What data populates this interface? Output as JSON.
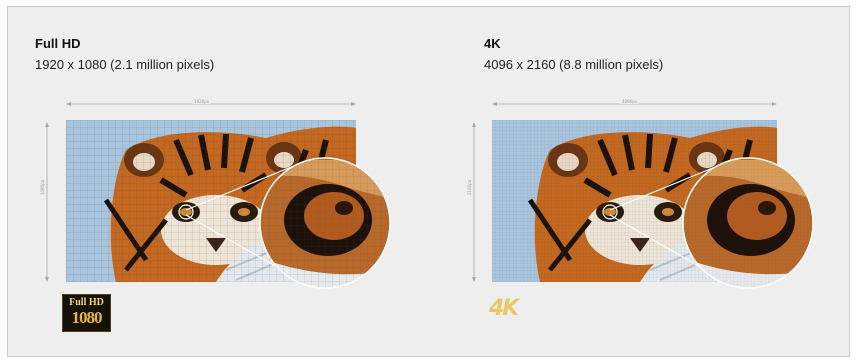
{
  "panels": [
    {
      "title": "Full HD",
      "subtitle": "1920 x 1080 (2.1 million pixels)",
      "width_label": "1920px",
      "height_label": "1080px",
      "logo_top": "Full HD",
      "logo_bottom": "1080"
    },
    {
      "title": "4K",
      "subtitle": "4096 x 2160 (8.8 million pixels)",
      "width_label": "4096px",
      "height_label": "2160px",
      "logo_text": "4K"
    }
  ],
  "colors": {
    "background": "#eeeeee",
    "border": "#c9c9c9",
    "sky": "#a9c4dd",
    "tiger_orange": "#c4671f",
    "snow": "#e4e8ec",
    "logo_gold": "#e9c867"
  }
}
